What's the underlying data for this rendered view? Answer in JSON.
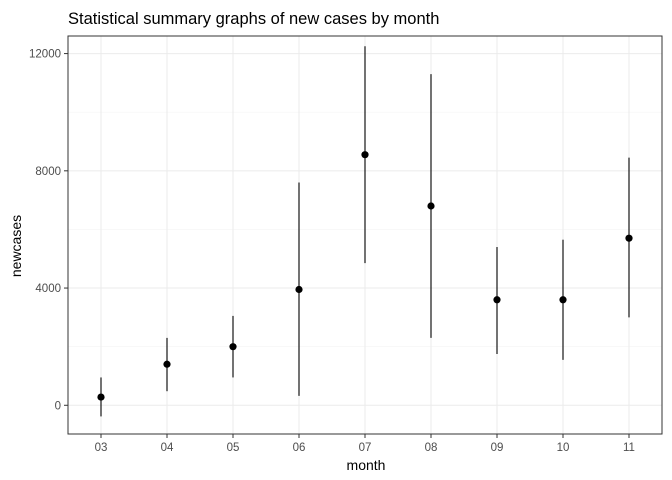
{
  "chart_data": {
    "type": "scatter",
    "title": "Statistical summary graphs of new cases by month",
    "xlabel": "month",
    "ylabel": "newcases",
    "categories": [
      "03",
      "04",
      "05",
      "06",
      "07",
      "08",
      "09",
      "10",
      "11"
    ],
    "series": [
      {
        "values": [
          280,
          1400,
          2000,
          3950,
          8550,
          6800,
          3600,
          3600,
          5700
        ],
        "lower": [
          -380,
          480,
          950,
          320,
          4850,
          2300,
          1750,
          1550,
          3000
        ],
        "upper": [
          950,
          2300,
          3050,
          7600,
          12250,
          11300,
          5400,
          5650,
          8450
        ]
      }
    ],
    "ylim": [
      -980,
      12600
    ],
    "yticks": [
      0,
      4000,
      8000,
      12000
    ],
    "ytick_labels": [
      "0",
      "4000",
      "8000",
      "12000"
    ],
    "grid": true,
    "legend": "none"
  }
}
